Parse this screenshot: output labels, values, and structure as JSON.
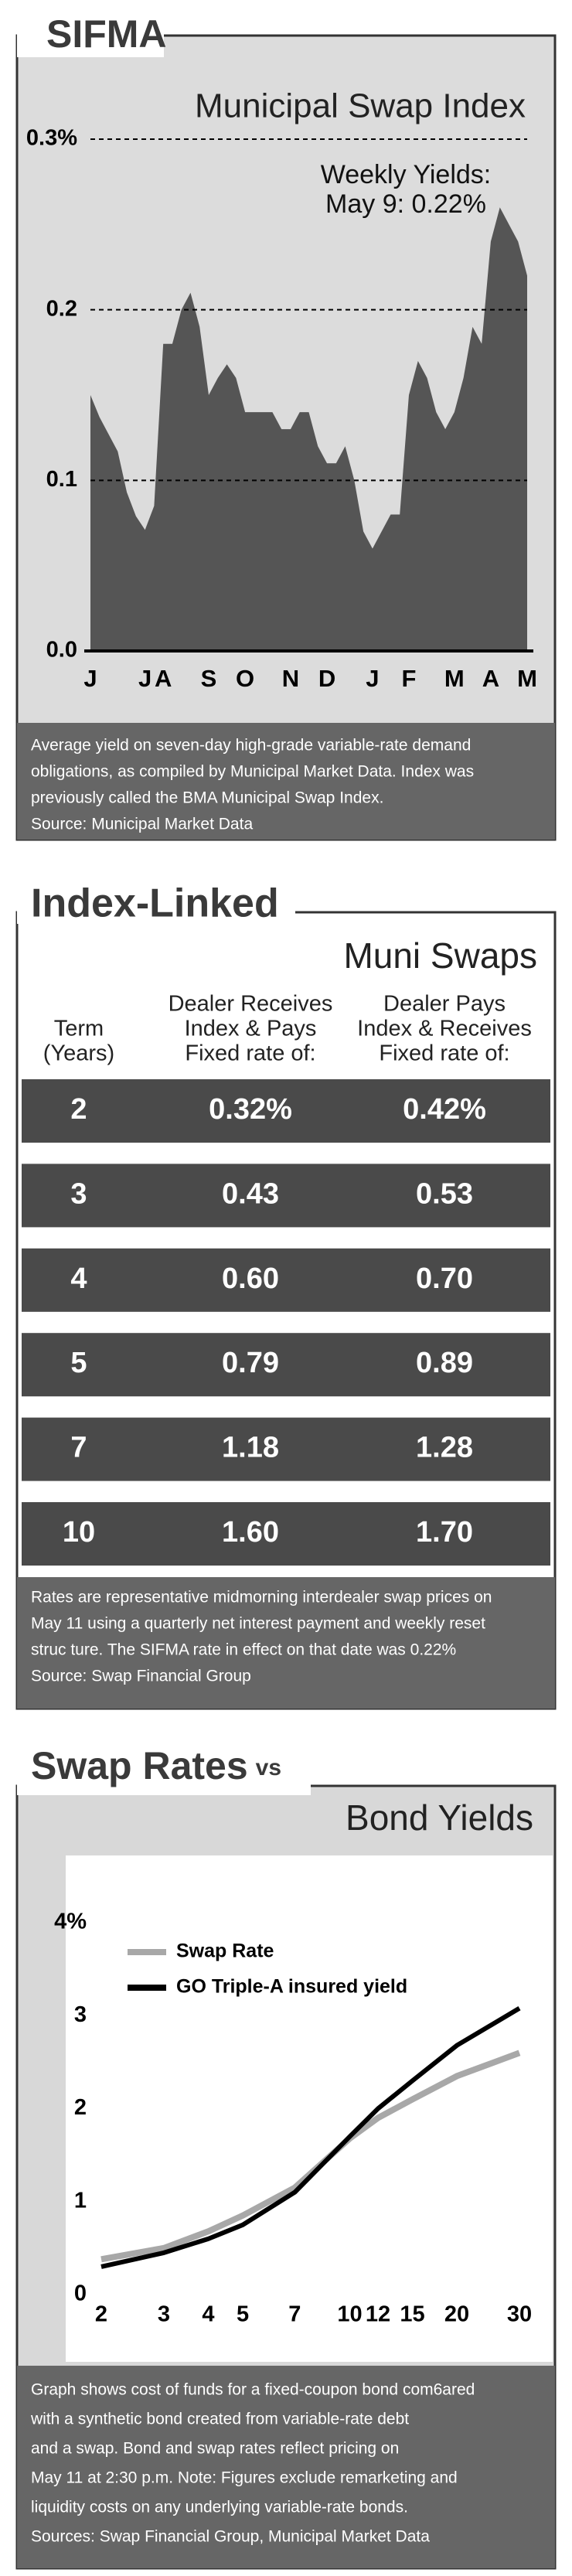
{
  "chart_data": [
    {
      "type": "area",
      "title": "SIFMA",
      "subtitle": "Municipal Swap Index",
      "annotation": [
        "Weekly Yields:",
        "May 9: 0.22%"
      ],
      "categories": [
        "J",
        null,
        null,
        null,
        null,
        null,
        "J",
        null,
        "A",
        null,
        null,
        null,
        null,
        "S",
        null,
        null,
        null,
        "O",
        null,
        null,
        null,
        null,
        "N",
        null,
        null,
        null,
        "D",
        null,
        null,
        null,
        null,
        "J",
        null,
        null,
        null,
        "F",
        null,
        null,
        null,
        null,
        "M",
        null,
        null,
        null,
        "A",
        null,
        null,
        null,
        "M"
      ],
      "values": [
        0.15,
        0.137,
        0.127,
        0.117,
        0.093,
        0.079,
        0.071,
        0.085,
        0.18,
        0.18,
        0.2,
        0.21,
        0.19,
        0.15,
        0.16,
        0.168,
        0.16,
        0.14,
        0.14,
        0.14,
        0.14,
        0.13,
        0.13,
        0.14,
        0.14,
        0.12,
        0.11,
        0.11,
        0.12,
        0.1,
        0.07,
        0.06,
        0.07,
        0.08,
        0.08,
        0.15,
        0.17,
        0.16,
        0.14,
        0.13,
        0.14,
        0.16,
        0.19,
        0.18,
        0.24,
        0.26,
        0.25,
        0.24,
        0.22
      ],
      "color": "#555555",
      "ylim": [
        0,
        0.3
      ],
      "yticks": [
        {
          "value": 0,
          "label": "0.0"
        },
        0.1,
        0.2,
        {
          "value": 0.3,
          "label": "0.3%"
        }
      ],
      "grid": true,
      "note": [
        "Average yield on seven-day high-grade variable-rate demand",
        "obligations, as compiled by Municipal Market Data.  Index was",
        "previously called the BMA Municipal Swap Index.",
        "Source: Municipal Market Data"
      ]
    },
    {
      "type": "line",
      "title": "Swap Rates",
      "title_suffix": "vs",
      "subtitle": "Bond Yields",
      "x": [
        2,
        3,
        4,
        5,
        7,
        10,
        12,
        15,
        20,
        30
      ],
      "xlim": [
        2,
        30
      ],
      "xticks": [
        2,
        3,
        4,
        5,
        7,
        10,
        12,
        15,
        20,
        30
      ],
      "xscale": "log",
      "ylim": [
        0,
        4
      ],
      "yticks": [
        0,
        1,
        2,
        3,
        {
          "value": 4,
          "label": "4%"
        }
      ],
      "series": [
        {
          "name": "Swap Rate",
          "color": "#a8a8a8",
          "values": [
            0.38,
            0.5,
            0.68,
            0.85,
            1.15,
            1.68,
            1.9,
            2.1,
            2.35,
            2.6
          ]
        },
        {
          "name": "GO Triple-A insured yield",
          "color": "#000000",
          "values": [
            0.3,
            0.45,
            0.6,
            0.75,
            1.1,
            1.7,
            2.0,
            2.3,
            2.68,
            3.08
          ]
        }
      ],
      "note": [
        "Graph shows cost of funds for a fixed-coupon bond com6ared",
        "with a synthetic bond created from variable-rate debt",
        "and a swap. Bond and swap rates reflect pricing on",
        "May 11 at 2:30 p.m. Note: Figures exclude remarketing and",
        "liquidity costs on any underlying variable-rate bonds.",
        "Sources: Swap Financial Group, Municipal Market Data"
      ]
    }
  ],
  "table": {
    "title": "Index-Linked",
    "subtitle": "Muni Swaps",
    "headers": [
      [
        "Term",
        "(Years)"
      ],
      [
        "Dealer Receives",
        "Index & Pays",
        "Fixed rate of:"
      ],
      [
        "Dealer Pays",
        "Index & Receives",
        "Fixed rate of:"
      ]
    ],
    "rows": [
      [
        "2",
        "0.32%",
        "0.42%"
      ],
      [
        "3",
        "0.43",
        "0.53"
      ],
      [
        "4",
        "0.60",
        "0.70"
      ],
      [
        "5",
        "0.79",
        "0.89"
      ],
      [
        "7",
        "1.18",
        "1.28"
      ],
      [
        "10",
        "1.60",
        "1.70"
      ]
    ],
    "note": [
      "Rates are representative midmorning interdealer swap prices on",
      "May 11 using a quarterly net interest payment and weekly reset",
      "struc ture. The SIFMA rate in effect on that date was 0.22%",
      "Source: Swap Financial Group"
    ]
  }
}
